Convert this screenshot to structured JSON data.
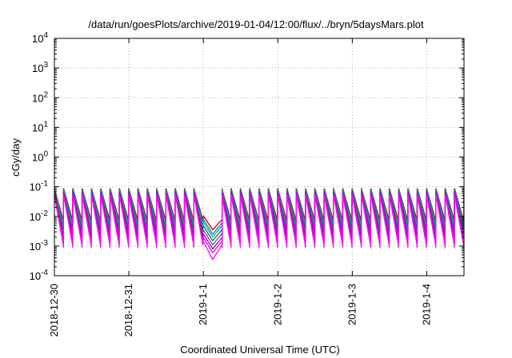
{
  "chart_data": {
    "type": "line",
    "title": "/data/run/goesPlots/archive/2019-01-04/12:00/flux/../bryn/5daysMars.plot",
    "xlabel": "Coordinated Universal Time (UTC)",
    "ylabel": "cGy/day",
    "y_scale": "log",
    "ylim": [
      0.0001,
      10000
    ],
    "xlim": [
      "2018-12-30 00:00",
      "2019-01-04 12:00"
    ],
    "grid": true,
    "legend": "none",
    "y_ticks": [
      {
        "base": "10",
        "exp": "-4"
      },
      {
        "base": "10",
        "exp": "-3"
      },
      {
        "base": "10",
        "exp": "-2"
      },
      {
        "base": "10",
        "exp": "-1"
      },
      {
        "base": "10",
        "exp": "0"
      },
      {
        "base": "10",
        "exp": "1"
      },
      {
        "base": "10",
        "exp": "2"
      },
      {
        "base": "10",
        "exp": "3"
      },
      {
        "base": "10",
        "exp": "4"
      }
    ],
    "x_ticks": [
      "2018-12-30",
      "2018-12-31",
      "2019-1-1",
      "2019-1-2",
      "2019-1-3",
      "2019-1-4"
    ],
    "sawtooth": {
      "period_hours": 3,
      "start": "2018-12-30 00:00",
      "dip_start": "2019-01-01 00:00",
      "dip_end": "2019-01-01 06:00"
    },
    "series": [
      {
        "color": "#c00000",
        "peak": 0.085,
        "trough": 0.0065,
        "dip_min": 0.0035
      },
      {
        "color": "#1f77b4",
        "peak": 0.08,
        "trough": 0.005,
        "dip_min": 0.0025
      },
      {
        "color": "#00b0b0",
        "peak": 0.075,
        "trough": 0.004,
        "dip_min": 0.002
      },
      {
        "color": "#207020",
        "peak": 0.07,
        "trough": 0.003,
        "dip_min": 0.0015
      },
      {
        "color": "#5050c8",
        "peak": 0.065,
        "trough": 0.0022,
        "dip_min": 0.0011
      },
      {
        "color": "#a000a0",
        "peak": 0.06,
        "trough": 0.0016,
        "dip_min": 0.0008
      },
      {
        "color": "#e000e0",
        "peak": 0.055,
        "trough": 0.0012,
        "dip_min": 0.0006
      },
      {
        "color": "#ff00ff",
        "peak": 0.05,
        "trough": 0.0009,
        "dip_min": 0.00035
      }
    ]
  }
}
